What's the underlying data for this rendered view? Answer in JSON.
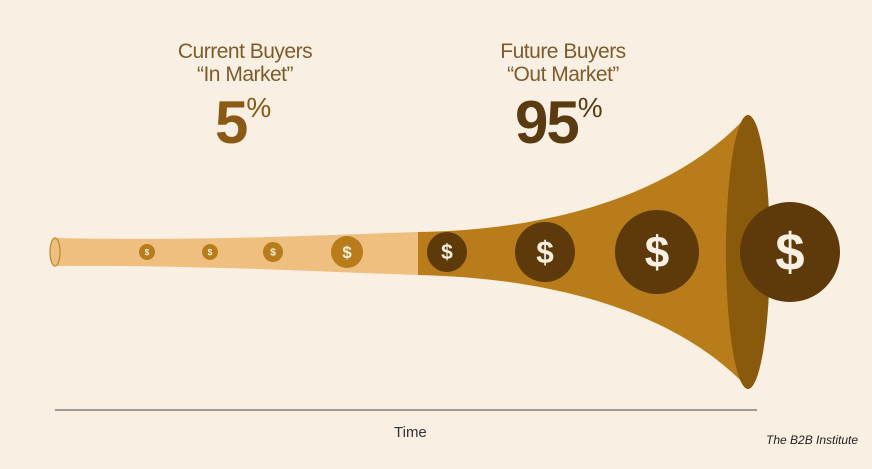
{
  "left_group": {
    "title": "Current Buyers",
    "subtitle": "“In Market”",
    "percent": "5",
    "percent_sign": "%"
  },
  "right_group": {
    "title": "Future Buyers",
    "subtitle": "“Out Market”",
    "percent": "95",
    "percent_sign": "%"
  },
  "coin_symbol": "$",
  "axis_label": "Time",
  "brand": "The B2B Institute",
  "colors": {
    "background": "#f9efe3",
    "tube_light": "#efbf80",
    "tube_dark": "#b97c1a",
    "coin_light": "#b97c1a",
    "coin_dark": "#5e3a0a",
    "rim": "#8a5a0c"
  }
}
